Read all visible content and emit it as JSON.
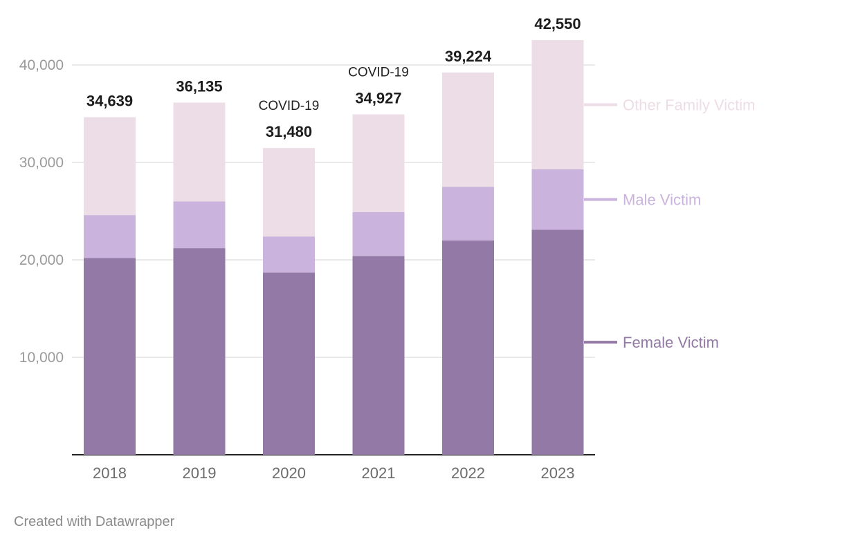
{
  "chart_data": {
    "type": "bar",
    "stacked": true,
    "categories": [
      "2018",
      "2019",
      "2020",
      "2021",
      "2022",
      "2023"
    ],
    "series": [
      {
        "name": "Female Victim",
        "color": "#9279a6",
        "values": [
          20200,
          21200,
          18700,
          20400,
          22000,
          23100
        ]
      },
      {
        "name": "Male Victim",
        "color": "#cab3dc",
        "values": [
          4400,
          4800,
          3700,
          4500,
          5500,
          6200
        ]
      },
      {
        "name": "Other Family Victim",
        "color": "#ecdde6",
        "values": [
          10039,
          10135,
          9080,
          10027,
          11724,
          13250
        ]
      }
    ],
    "totals": [
      "34,639",
      "36,135",
      "31,480",
      "34,927",
      "39,224",
      "42,550"
    ],
    "annotations": [
      {
        "category": "2020",
        "text": "COVID-19"
      },
      {
        "category": "2021",
        "text": "COVID-19"
      }
    ],
    "yticks": [
      {
        "value": 10000,
        "label": "10,000"
      },
      {
        "value": 20000,
        "label": "20,000"
      },
      {
        "value": 30000,
        "label": "30,000"
      },
      {
        "value": 40000,
        "label": "40,000"
      }
    ],
    "ylim": [
      0,
      45000
    ],
    "grid": true,
    "legend": "right, inline labels"
  },
  "footer": {
    "credit": "Created with Datawrapper"
  }
}
